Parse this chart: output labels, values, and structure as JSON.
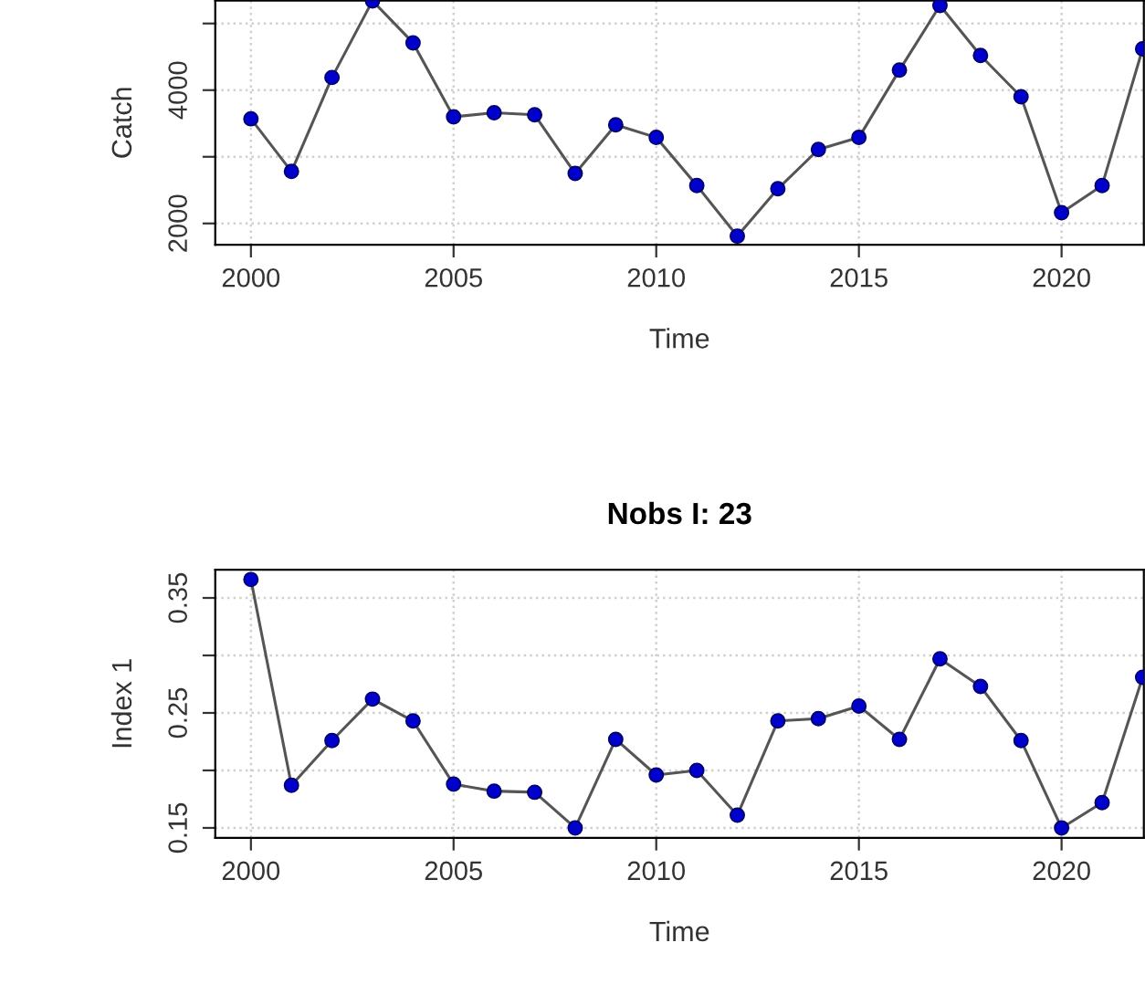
{
  "chart_data": [
    {
      "type": "line",
      "xlabel": "Time",
      "ylabel": "Catch",
      "x": [
        2000,
        2001,
        2002,
        2003,
        2004,
        2005,
        2006,
        2007,
        2008,
        2009,
        2010,
        2011,
        2012,
        2013,
        2014,
        2015,
        2016,
        2017,
        2018,
        2019,
        2020,
        2021,
        2022
      ],
      "series": [
        {
          "color": "#0000cc",
          "values": [
            3570,
            2780,
            4190,
            5340,
            4710,
            3600,
            3660,
            3630,
            2750,
            3480,
            3290,
            2570,
            1810,
            2520,
            3110,
            3290,
            4300,
            5270,
            4520,
            3900,
            2160,
            2570,
            4620
          ]
        }
      ],
      "xlim": [
        1999.12,
        2022.03
      ],
      "xticks": [
        2000,
        2005,
        2010,
        2015,
        2020
      ],
      "ylim": [
        1680,
        5345
      ],
      "yticks": [
        2000,
        {
          "value": 3000,
          "label": null
        },
        4000,
        {
          "value": 5000,
          "label": null
        }
      ],
      "grid": true,
      "marker": "circle",
      "line_style": "solid"
    },
    {
      "type": "line",
      "title": "Nobs I: 23",
      "xlabel": "Time",
      "ylabel": "Index 1",
      "x": [
        2000,
        2001,
        2002,
        2003,
        2004,
        2005,
        2006,
        2007,
        2008,
        2009,
        2010,
        2011,
        2012,
        2013,
        2014,
        2015,
        2016,
        2017,
        2018,
        2019,
        2020,
        2021,
        2022
      ],
      "series": [
        {
          "color": "#0000cc",
          "values": [
            0.366,
            0.187,
            0.226,
            0.262,
            0.243,
            0.188,
            0.182,
            0.181,
            0.15,
            0.227,
            0.196,
            0.2,
            0.161,
            0.243,
            0.245,
            0.256,
            0.227,
            0.297,
            0.273,
            0.226,
            0.15,
            0.172,
            0.281
          ]
        }
      ],
      "xlim": [
        1999.12,
        2022.03
      ],
      "xticks": [
        2000,
        2005,
        2010,
        2015,
        2020
      ],
      "ylim": [
        0.1414,
        0.3746
      ],
      "yticks": [
        0.15,
        {
          "value": 0.2,
          "label": null
        },
        0.25,
        {
          "value": 0.3,
          "label": null
        },
        0.35
      ],
      "grid": true,
      "marker": "circle",
      "line_style": "solid"
    }
  ]
}
